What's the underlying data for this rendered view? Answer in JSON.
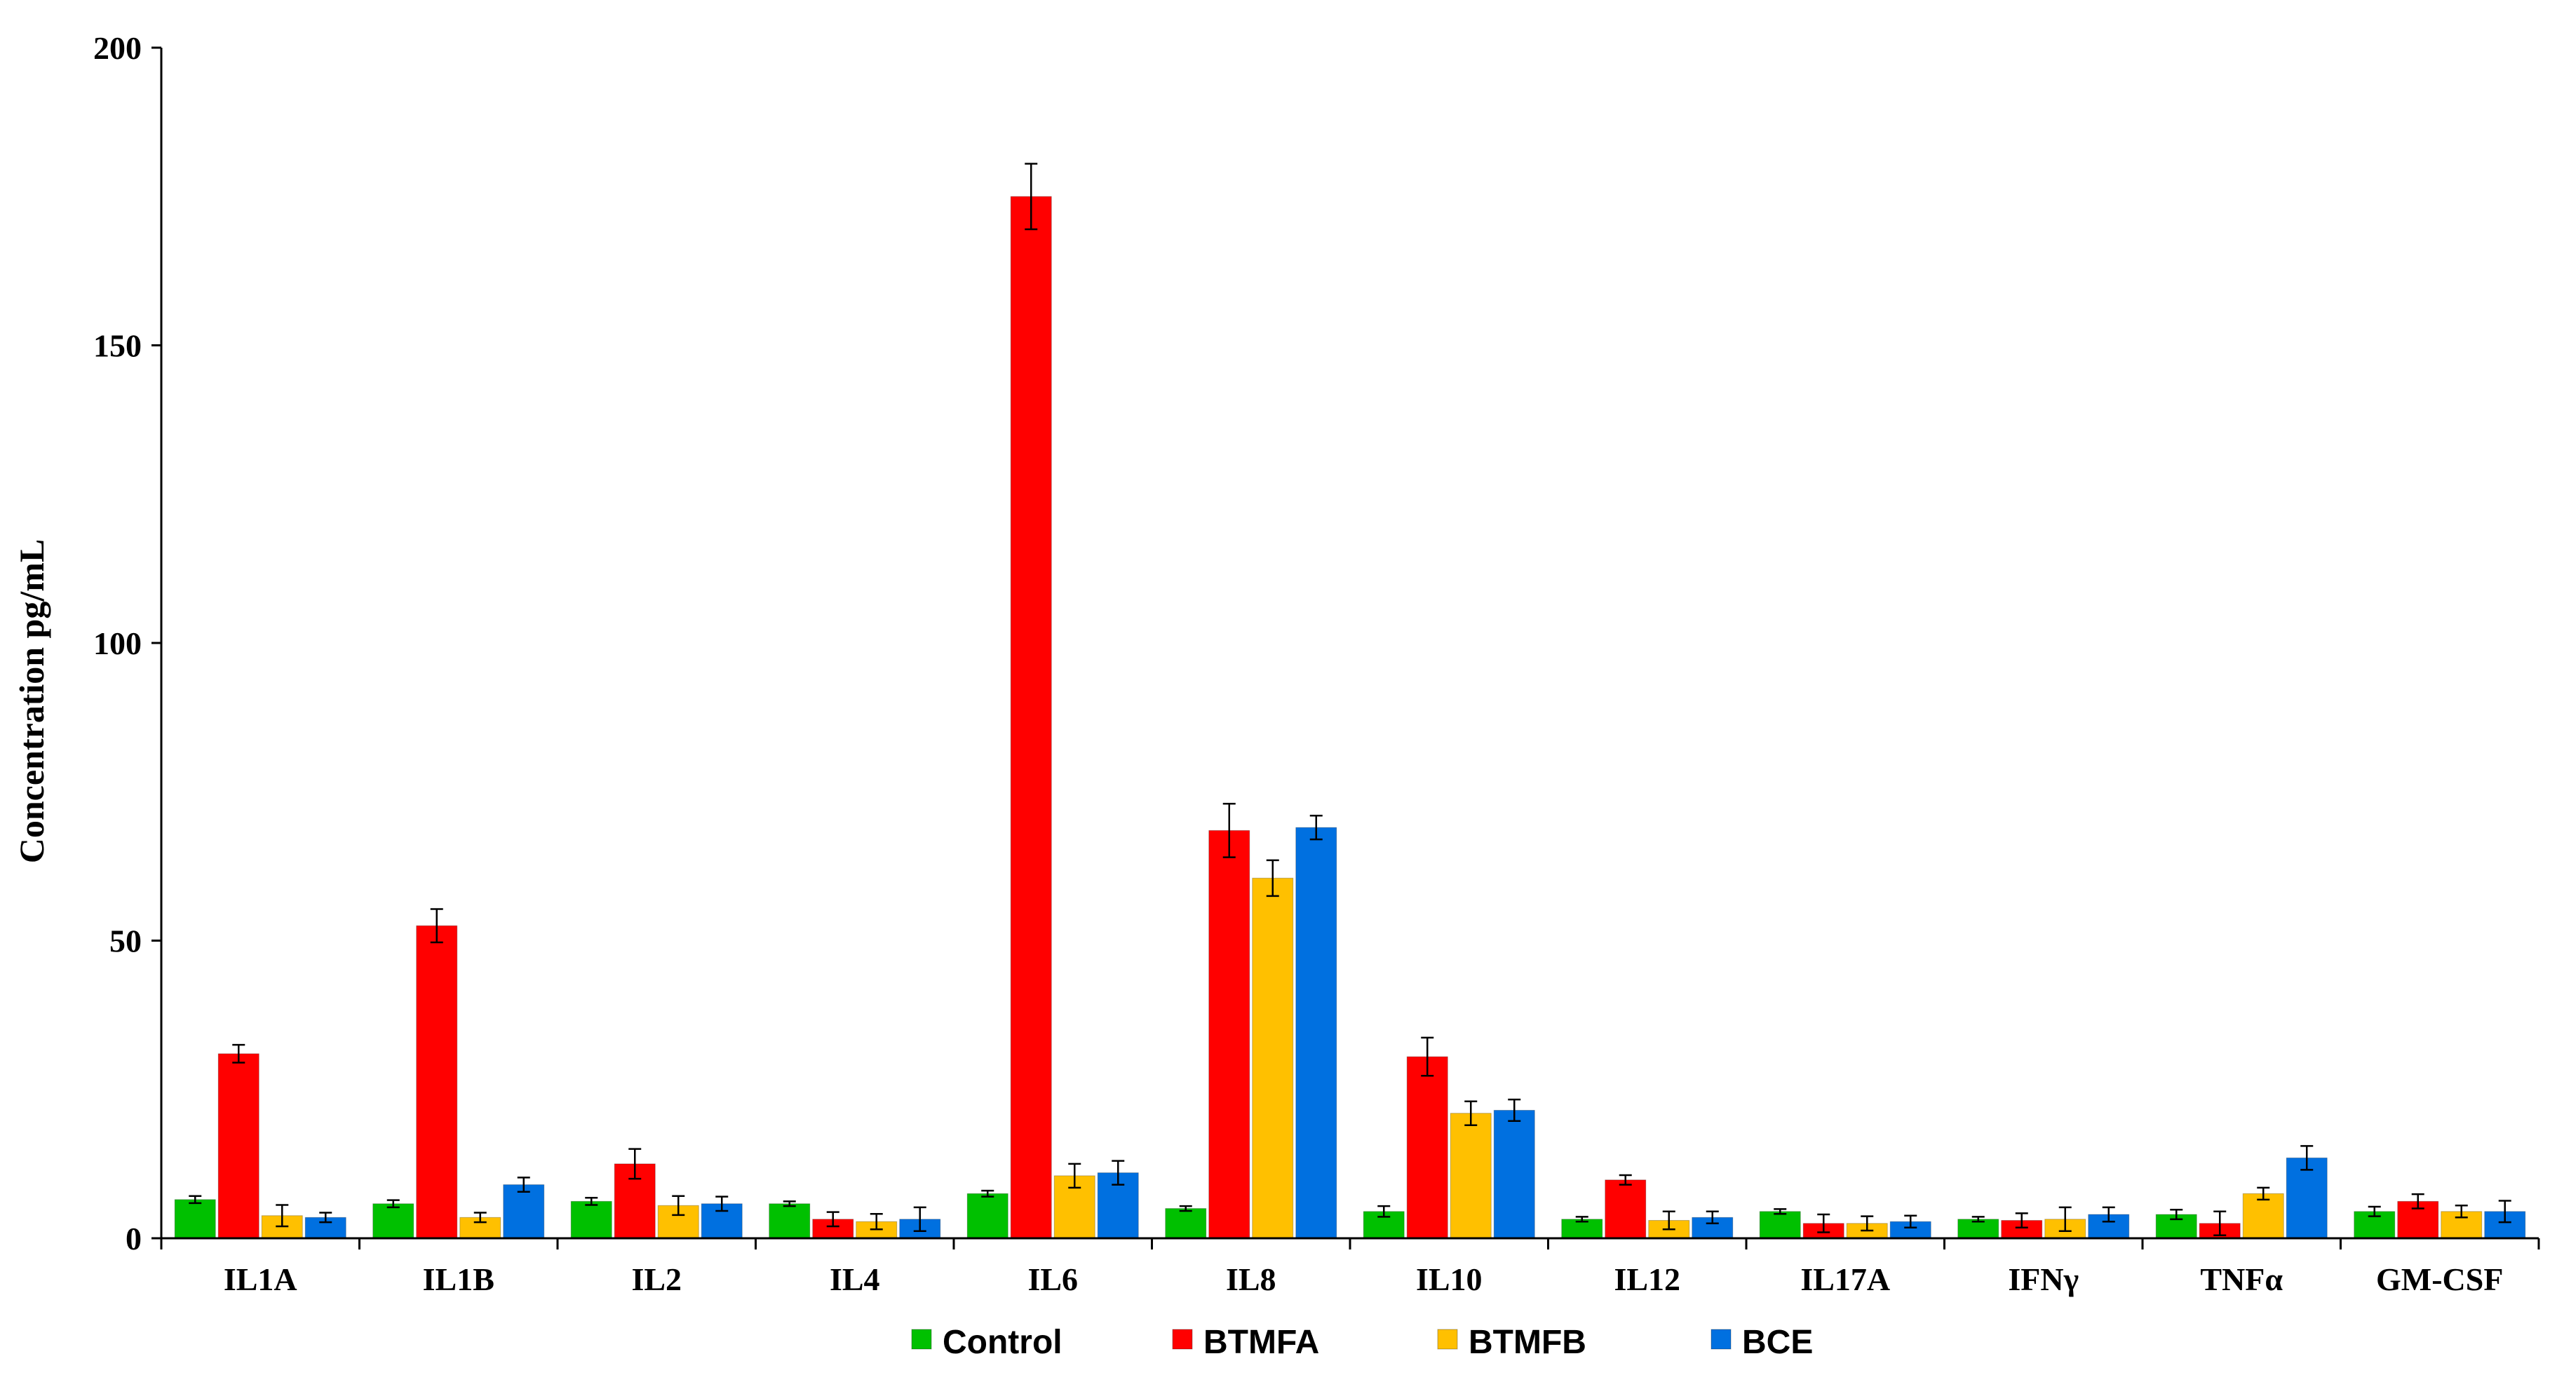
{
  "chart_data": {
    "type": "bar",
    "title": "",
    "xlabel": "",
    "ylabel": "Concentration  pg/mL",
    "ylim": [
      0,
      200
    ],
    "yticks": [
      0,
      50,
      100,
      150,
      200
    ],
    "grid": false,
    "legend_position": "bottom",
    "categories": [
      "IL1A",
      "IL1B",
      "IL2",
      "IL4",
      "IL6",
      "IL8",
      "IL10",
      "IL12",
      "IL17A",
      "IFNγ",
      "TNFα",
      "GM-CSF"
    ],
    "series": [
      {
        "name": "Control",
        "color": "#00c000",
        "values": [
          6.5,
          5.8,
          6.2,
          5.8,
          7.5,
          5.0,
          4.5,
          3.2,
          4.5,
          3.2,
          4.0,
          4.5
        ],
        "errors": [
          0.6,
          0.6,
          0.6,
          0.4,
          0.5,
          0.4,
          0.9,
          0.4,
          0.4,
          0.4,
          0.8,
          0.8
        ]
      },
      {
        "name": "BTMFA",
        "color": "#ff0000",
        "values": [
          31.0,
          52.5,
          12.5,
          3.2,
          175.0,
          68.5,
          30.5,
          9.8,
          2.5,
          3.0,
          2.5,
          6.2
        ],
        "errors": [
          1.5,
          2.8,
          2.5,
          1.2,
          5.5,
          4.5,
          3.2,
          0.8,
          1.5,
          1.2,
          2.0,
          1.2
        ]
      },
      {
        "name": "BTMFB",
        "color": "#ffc000",
        "values": [
          3.8,
          3.5,
          5.5,
          2.8,
          10.5,
          60.5,
          21.0,
          3.0,
          2.5,
          3.2,
          7.5,
          4.5
        ],
        "errors": [
          1.8,
          0.8,
          1.6,
          1.3,
          2.0,
          3.0,
          2.0,
          1.5,
          1.2,
          2.0,
          1.0,
          1.0
        ]
      },
      {
        "name": "BCE",
        "color": "#0070e0",
        "values": [
          3.5,
          9.0,
          5.8,
          3.2,
          11.0,
          69.0,
          21.5,
          3.5,
          2.8,
          4.0,
          13.5,
          4.5
        ],
        "errors": [
          0.8,
          1.2,
          1.2,
          2.0,
          2.0,
          2.0,
          1.8,
          1.0,
          1.0,
          1.2,
          2.0,
          1.8
        ]
      }
    ]
  }
}
